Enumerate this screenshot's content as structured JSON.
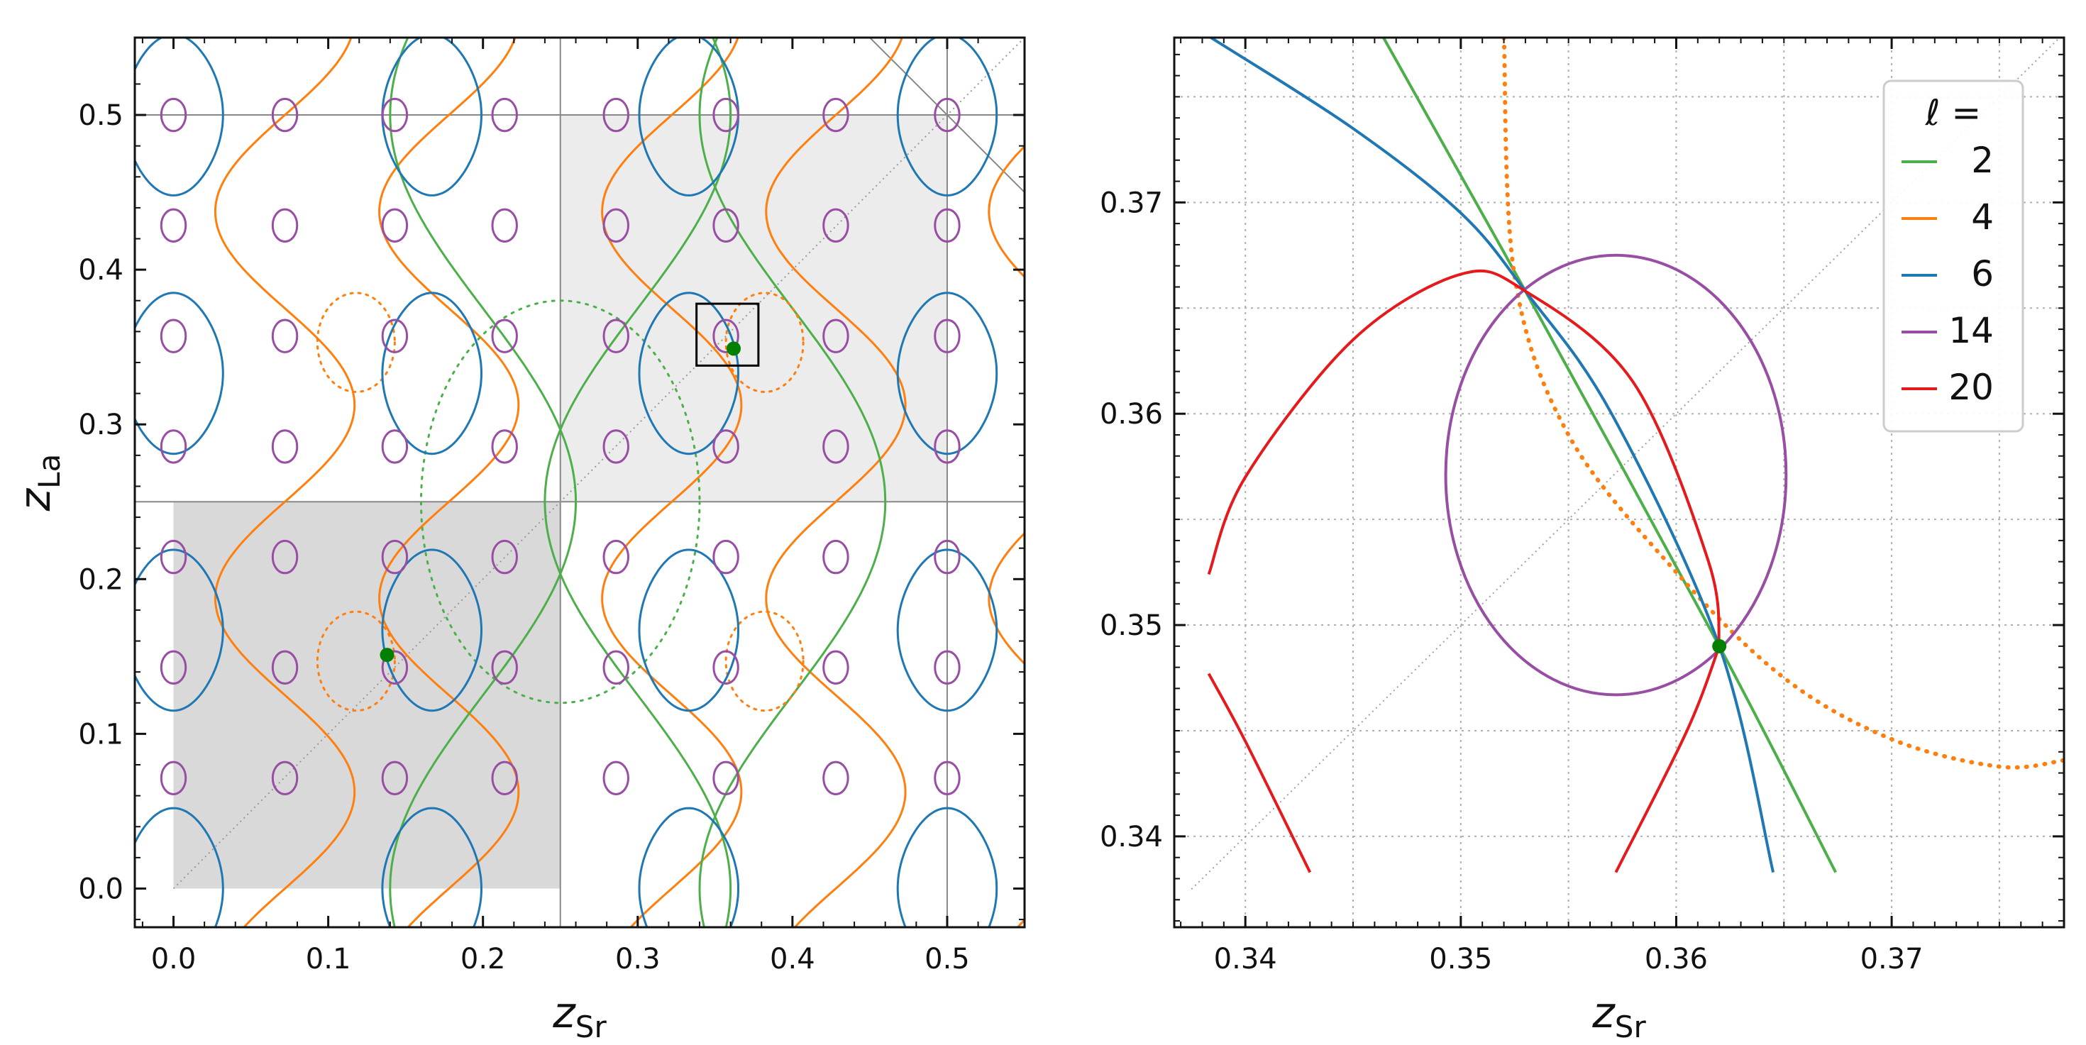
{
  "chart_data": [
    {
      "panel": "left",
      "type": "line",
      "xlabel_main": "z",
      "xlabel_sub": "Sr",
      "ylabel_main": "z",
      "ylabel_sub": "La",
      "xlim": [
        -0.025,
        0.55
      ],
      "ylim": [
        -0.025,
        0.55
      ],
      "xticks": [
        "0.0",
        "0.1",
        "0.2",
        "0.3",
        "0.4",
        "0.5"
      ],
      "yticks": [
        "0.0",
        "0.1",
        "0.2",
        "0.3",
        "0.4",
        "0.5"
      ],
      "shaded_regions": [
        {
          "x": [
            0.0,
            0.25
          ],
          "y": [
            0.0,
            0.25
          ],
          "color": "#d9d9d9"
        },
        {
          "x": [
            0.25,
            0.5
          ],
          "y": [
            0.25,
            0.5
          ],
          "color": "#ececec"
        }
      ],
      "reference_lines": {
        "vertical": [
          0.25,
          0.5
        ],
        "horizontal": [
          0.25,
          0.5
        ],
        "diagonal_dotted": "y = x",
        "anti_diagonal": "x + y = 1"
      },
      "zoom_box": {
        "x": [
          0.338,
          0.378
        ],
        "y": [
          0.338,
          0.378
        ]
      },
      "points": [
        {
          "x": 0.138,
          "y": 0.151,
          "color": "#008000"
        },
        {
          "x": 0.362,
          "y": 0.349,
          "color": "#008000"
        }
      ],
      "series": [
        {
          "name": "2",
          "color": "#4daf4a",
          "style": "solid"
        },
        {
          "name": "2 (dotted)",
          "color": "#4daf4a",
          "style": "dotted",
          "center": [
            0.25,
            0.25
          ],
          "radius": [
            0.09,
            0.13
          ]
        },
        {
          "name": "4",
          "color": "#ff7f0e",
          "style": "solid"
        },
        {
          "name": "4 (dotted)",
          "color": "#ff7f0e",
          "style": "dotted"
        },
        {
          "name": "6",
          "color": "#1f77b4",
          "style": "solid"
        },
        {
          "name": "14",
          "color": "#984ea3",
          "style": "solid"
        }
      ]
    },
    {
      "panel": "right",
      "type": "line",
      "xlabel_main": "z",
      "xlabel_sub": "Sr",
      "xlim": [
        0.3367,
        0.378
      ],
      "ylim": [
        0.3357,
        0.3778
      ],
      "xticks": [
        "0.34",
        "0.35",
        "0.36",
        "0.37"
      ],
      "yticks": [
        "0.34",
        "0.35",
        "0.36",
        "0.37"
      ],
      "points": [
        {
          "x": 0.362,
          "y": 0.349,
          "color": "#008000"
        }
      ],
      "series": [
        {
          "name": "2",
          "color": "#4daf4a",
          "points": [
            [
              0.3463,
              0.378
            ],
            [
              0.353,
              0.3658
            ],
            [
              0.362,
              0.349
            ],
            [
              0.3674,
              0.3383
            ]
          ]
        },
        {
          "name": "4",
          "color": "#ff7f0e",
          "style": "dotted",
          "points": [
            [
              0.352,
              0.3778
            ],
            [
              0.3525,
              0.3665
            ],
            [
              0.355,
              0.359
            ],
            [
              0.36,
              0.3525
            ],
            [
              0.365,
              0.3475
            ],
            [
              0.37,
              0.3446
            ],
            [
              0.375,
              0.3433
            ],
            [
              0.378,
              0.3436
            ]
          ]
        },
        {
          "name": "6",
          "color": "#1f77b4",
          "points": [
            [
              0.3384,
              0.3778
            ],
            [
              0.345,
              0.3735
            ],
            [
              0.35,
              0.3695
            ],
            [
              0.353,
              0.3658
            ],
            [
              0.357,
              0.36
            ],
            [
              0.362,
              0.349
            ],
            [
              0.3645,
              0.3383
            ]
          ]
        },
        {
          "name": "14",
          "color": "#984ea3",
          "ellipse": {
            "center": [
              0.3572,
              0.3571
            ],
            "rx": 0.0079,
            "ry": 0.0104
          }
        },
        {
          "name": "20",
          "color": "#e41a1c",
          "segments": [
            [
              [
                0.3383,
                0.3524
              ],
              [
                0.34,
                0.357
              ],
              [
                0.345,
                0.3635
              ],
              [
                0.35,
                0.3666
              ],
              [
                0.353,
                0.3658
              ],
              [
                0.358,
                0.3615
              ],
              [
                0.3615,
                0.353
              ],
              [
                0.362,
                0.349
              ]
            ],
            [
              [
                0.3383,
                0.3477
              ],
              [
                0.34,
                0.3445
              ],
              [
                0.343,
                0.3383
              ]
            ],
            [
              [
                0.362,
                0.349
              ],
              [
                0.3605,
                0.345
              ],
              [
                0.3572,
                0.3383
              ]
            ]
          ]
        }
      ],
      "legend": {
        "title": "ℓ =",
        "position": "top-right",
        "labels": [
          "2",
          "4",
          "6",
          "14",
          "20"
        ]
      }
    }
  ]
}
